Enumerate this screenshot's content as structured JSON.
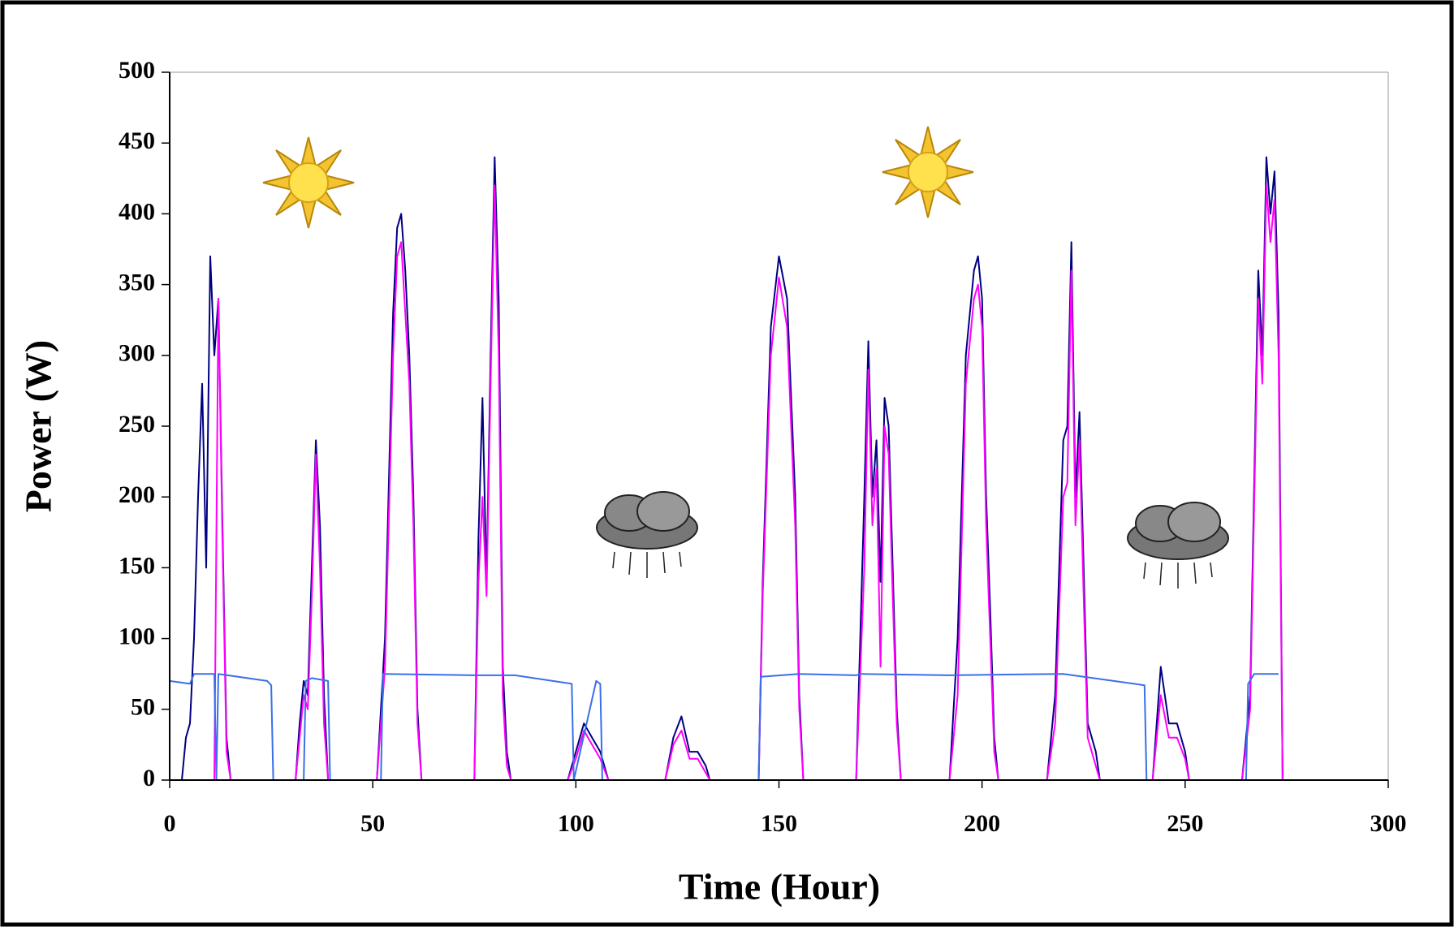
{
  "chart_data": {
    "type": "line",
    "x_label": "Time (Hour)",
    "y_label": "Power (W)",
    "xlim": [
      0,
      300
    ],
    "ylim": [
      0,
      500
    ],
    "xticks": [
      0,
      50,
      100,
      150,
      200,
      250,
      300
    ],
    "yticks": [
      0,
      50,
      100,
      150,
      200,
      250,
      300,
      350,
      400,
      450,
      500
    ],
    "series": [
      {
        "color": "#000080",
        "x": [
          0,
          3,
          4,
          5,
          6,
          7,
          8,
          9,
          10,
          11,
          12,
          13,
          14,
          15,
          31,
          32,
          33,
          34,
          35,
          36,
          37,
          38,
          39,
          51,
          53,
          55,
          56,
          57,
          58,
          59,
          60,
          61,
          62,
          75,
          76,
          77,
          78,
          79,
          80,
          81,
          82,
          83,
          84,
          98,
          100,
          102,
          104,
          106,
          108,
          122,
          124,
          126,
          128,
          130,
          132,
          133,
          145,
          146,
          148,
          150,
          152,
          154,
          155,
          156,
          169,
          171,
          172,
          173,
          174,
          175,
          176,
          177,
          178,
          179,
          180,
          192,
          194,
          196,
          198,
          199,
          200,
          201,
          202,
          203,
          204,
          216,
          218,
          220,
          221,
          222,
          223,
          224,
          225,
          226,
          228,
          229,
          242,
          244,
          246,
          248,
          250,
          251,
          264,
          266,
          268,
          269,
          270,
          271,
          272,
          273,
          274
        ],
        "values": [
          0,
          0,
          30,
          40,
          100,
          200,
          280,
          150,
          370,
          300,
          340,
          180,
          30,
          0,
          0,
          40,
          70,
          60,
          150,
          240,
          180,
          60,
          0,
          0,
          100,
          330,
          390,
          400,
          360,
          300,
          200,
          50,
          0,
          0,
          170,
          270,
          140,
          300,
          440,
          340,
          80,
          20,
          0,
          0,
          20,
          40,
          30,
          20,
          0,
          0,
          30,
          45,
          20,
          20,
          10,
          0,
          0,
          140,
          320,
          370,
          340,
          200,
          60,
          0,
          0,
          200,
          310,
          200,
          240,
          140,
          270,
          250,
          150,
          50,
          0,
          0,
          100,
          300,
          360,
          370,
          340,
          200,
          120,
          30,
          0,
          0,
          60,
          240,
          250,
          380,
          200,
          260,
          150,
          40,
          20,
          0,
          0,
          80,
          40,
          40,
          20,
          0,
          0,
          60,
          360,
          300,
          440,
          400,
          430,
          330,
          0
        ]
      },
      {
        "color": "#ff00ff",
        "x": [
          0,
          3,
          4,
          5,
          6,
          7,
          8,
          9,
          10,
          11,
          12,
          13,
          14,
          15,
          31,
          32,
          33,
          34,
          35,
          36,
          37,
          38,
          39,
          51,
          53,
          55,
          56,
          57,
          58,
          59,
          60,
          61,
          62,
          75,
          76,
          77,
          78,
          79,
          80,
          81,
          82,
          83,
          84,
          98,
          100,
          102,
          104,
          106,
          108,
          122,
          124,
          126,
          128,
          130,
          132,
          133,
          145,
          146,
          148,
          150,
          152,
          154,
          155,
          156,
          169,
          171,
          172,
          173,
          174,
          175,
          176,
          177,
          178,
          179,
          180,
          192,
          194,
          196,
          198,
          199,
          200,
          201,
          202,
          203,
          204,
          216,
          218,
          220,
          221,
          222,
          223,
          224,
          225,
          226,
          228,
          229,
          242,
          244,
          246,
          248,
          250,
          251,
          264,
          266,
          268,
          269,
          270,
          271,
          272,
          273,
          274
        ],
        "values": [
          0,
          0,
          0,
          0,
          0,
          0,
          0,
          0,
          0,
          0,
          340,
          170,
          20,
          0,
          0,
          30,
          60,
          50,
          130,
          230,
          150,
          40,
          0,
          0,
          80,
          300,
          370,
          380,
          330,
          280,
          180,
          40,
          0,
          0,
          140,
          200,
          130,
          280,
          420,
          300,
          60,
          10,
          0,
          0,
          15,
          35,
          25,
          15,
          0,
          0,
          25,
          35,
          15,
          15,
          5,
          0,
          0,
          130,
          300,
          355,
          320,
          180,
          50,
          0,
          0,
          150,
          290,
          180,
          220,
          80,
          250,
          230,
          130,
          40,
          0,
          0,
          60,
          280,
          340,
          350,
          320,
          180,
          100,
          20,
          0,
          0,
          40,
          200,
          210,
          360,
          180,
          240,
          130,
          30,
          10,
          0,
          0,
          60,
          30,
          30,
          15,
          0,
          0,
          50,
          340,
          280,
          420,
          380,
          410,
          300,
          0
        ]
      },
      {
        "color": "#3a6fe8",
        "x": [
          0,
          5,
          6,
          11,
          11.5,
          12,
          24,
          25,
          25.5,
          33,
          33.5,
          35,
          39,
          39.5,
          52,
          52.5,
          75,
          85,
          99,
          99.5,
          105,
          106,
          106.5,
          145,
          145.5,
          155,
          169,
          170,
          192,
          220,
          240,
          240.5,
          265,
          265.5,
          267,
          273
        ],
        "values": [
          70,
          68,
          75,
          75,
          0,
          75,
          70,
          67,
          0,
          0,
          70,
          72,
          70,
          0,
          0,
          75,
          74,
          74,
          68,
          0,
          70,
          68,
          0,
          0,
          73,
          75,
          74,
          75,
          74,
          75,
          67,
          0,
          0,
          68,
          75,
          75
        ]
      }
    ]
  }
}
